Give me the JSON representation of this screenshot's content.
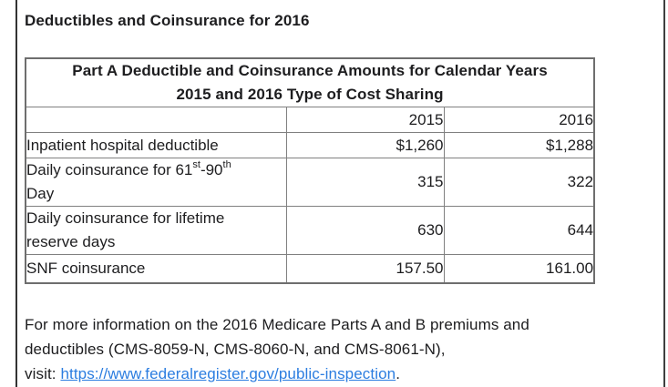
{
  "page": {
    "title": "Deductibles and Coinsurance for 2016"
  },
  "table": {
    "caption_line1": "Part A Deductible and Coinsurance Amounts for Calendar Years",
    "caption_line2": "2015 and 2016 Type of Cost Sharing",
    "col_2015": "2015",
    "col_2016": "2016",
    "rows": [
      {
        "label": "Inpatient hospital deductible",
        "y2015": "$1,260",
        "y2016": "$1,288"
      },
      {
        "label_prefix": "Daily coinsurance for 61",
        "sup1": "st",
        "label_mid": "-90",
        "sup2": "th",
        "label_line2": "Day",
        "y2015": "315",
        "y2016": "322"
      },
      {
        "label_line1": "Daily coinsurance for lifetime",
        "label_line2": "reserve days",
        "y2015": "630",
        "y2016": "644"
      },
      {
        "label": "SNF coinsurance",
        "y2015": "157.50",
        "y2016": "161.00"
      }
    ]
  },
  "footer": {
    "line1": "For more information on the 2016 Medicare Parts A and B premiums and",
    "line2": "deductibles (CMS-8059-N, CMS-8060-N, and CMS-8061-N),",
    "line3_prefix": "visit: ",
    "link_text": "https://www.federalregister.gov/public-inspection",
    "line3_suffix": "."
  },
  "colors": {
    "link_blue": "#2b7de0",
    "table_border": "#808080",
    "text": "#1d1d1f"
  }
}
